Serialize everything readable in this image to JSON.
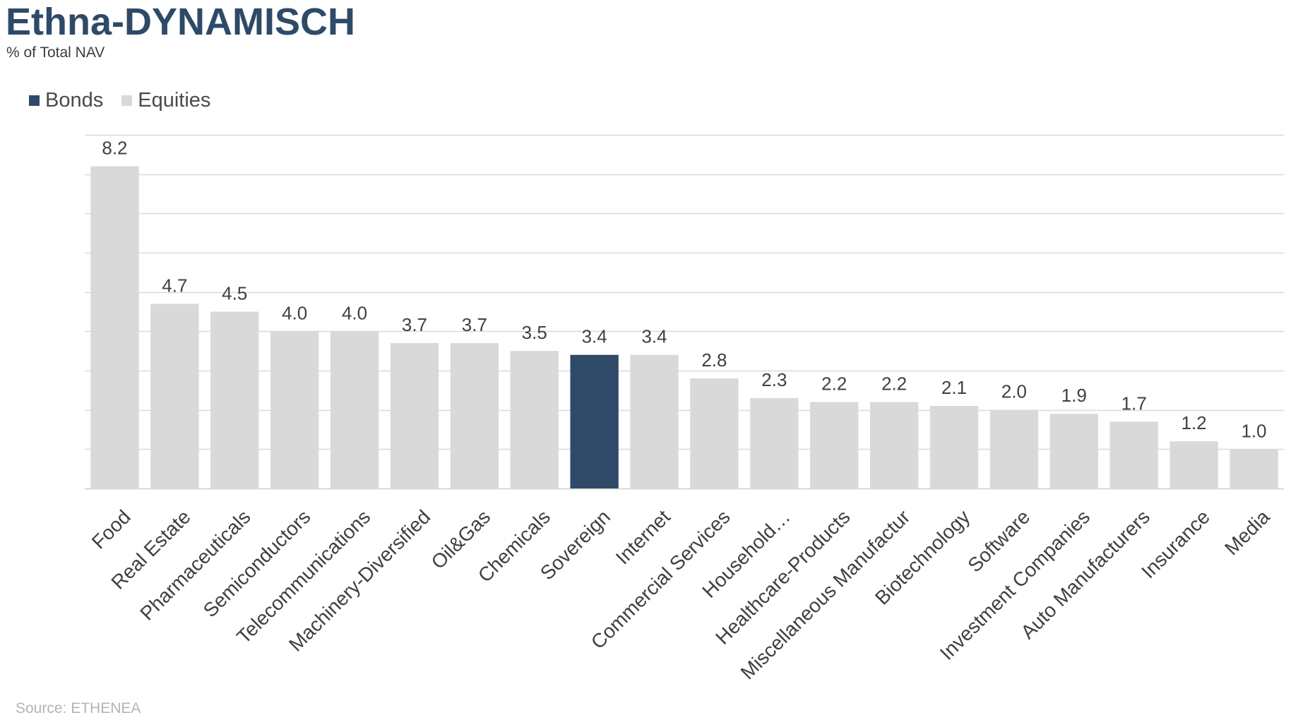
{
  "header": {
    "title": "Ethna-DYNAMISCH",
    "subtitle": "% of Total NAV"
  },
  "footer": {
    "source": "Source: ETHENEA"
  },
  "colors": {
    "bonds": "#2e4a68",
    "equities": "#d9d9d9",
    "grid": "#d9d9d9",
    "label": "#404040"
  },
  "chart_data": {
    "type": "bar",
    "title": "Ethna-DYNAMISCH",
    "subtitle": "% of Total NAV",
    "xlabel": "",
    "ylabel": "",
    "ylim": [
      0,
      9
    ],
    "grid": true,
    "legend": {
      "placement": "top-left",
      "entries": [
        {
          "name": "Bonds",
          "color": "#2e4a68"
        },
        {
          "name": "Equities",
          "color": "#d9d9d9"
        }
      ]
    },
    "categories": [
      "Food",
      "Real Estate",
      "Pharmaceuticals",
      "Semiconductors",
      "Telecommunications",
      "Machinery-Diversified",
      "Oil&Gas",
      "Chemicals",
      "Sovereign",
      "Internet",
      "Commercial Services",
      "Household…",
      "Healthcare-Products",
      "Miscellaneous Manufactur",
      "Biotechnology",
      "Software",
      "Investment Companies",
      "Auto Manufacturers",
      "Insurance",
      "Media"
    ],
    "values": [
      8.2,
      4.7,
      4.5,
      4.0,
      4.0,
      3.7,
      3.7,
      3.5,
      3.4,
      3.4,
      2.8,
      2.3,
      2.2,
      2.2,
      2.1,
      2.0,
      1.9,
      1.7,
      1.2,
      1.0
    ],
    "value_labels": [
      "8.2",
      "4.7",
      "4.5",
      "4.0",
      "4.0",
      "3.7",
      "3.7",
      "3.5",
      "3.4",
      "3.4",
      "2.8",
      "2.3",
      "2.2",
      "2.2",
      "2.1",
      "2.0",
      "1.9",
      "1.7",
      "1.2",
      "1.0"
    ],
    "series_of": [
      "Equities",
      "Equities",
      "Equities",
      "Equities",
      "Equities",
      "Equities",
      "Equities",
      "Equities",
      "Bonds",
      "Equities",
      "Equities",
      "Equities",
      "Equities",
      "Equities",
      "Equities",
      "Equities",
      "Equities",
      "Equities",
      "Equities",
      "Equities"
    ]
  }
}
